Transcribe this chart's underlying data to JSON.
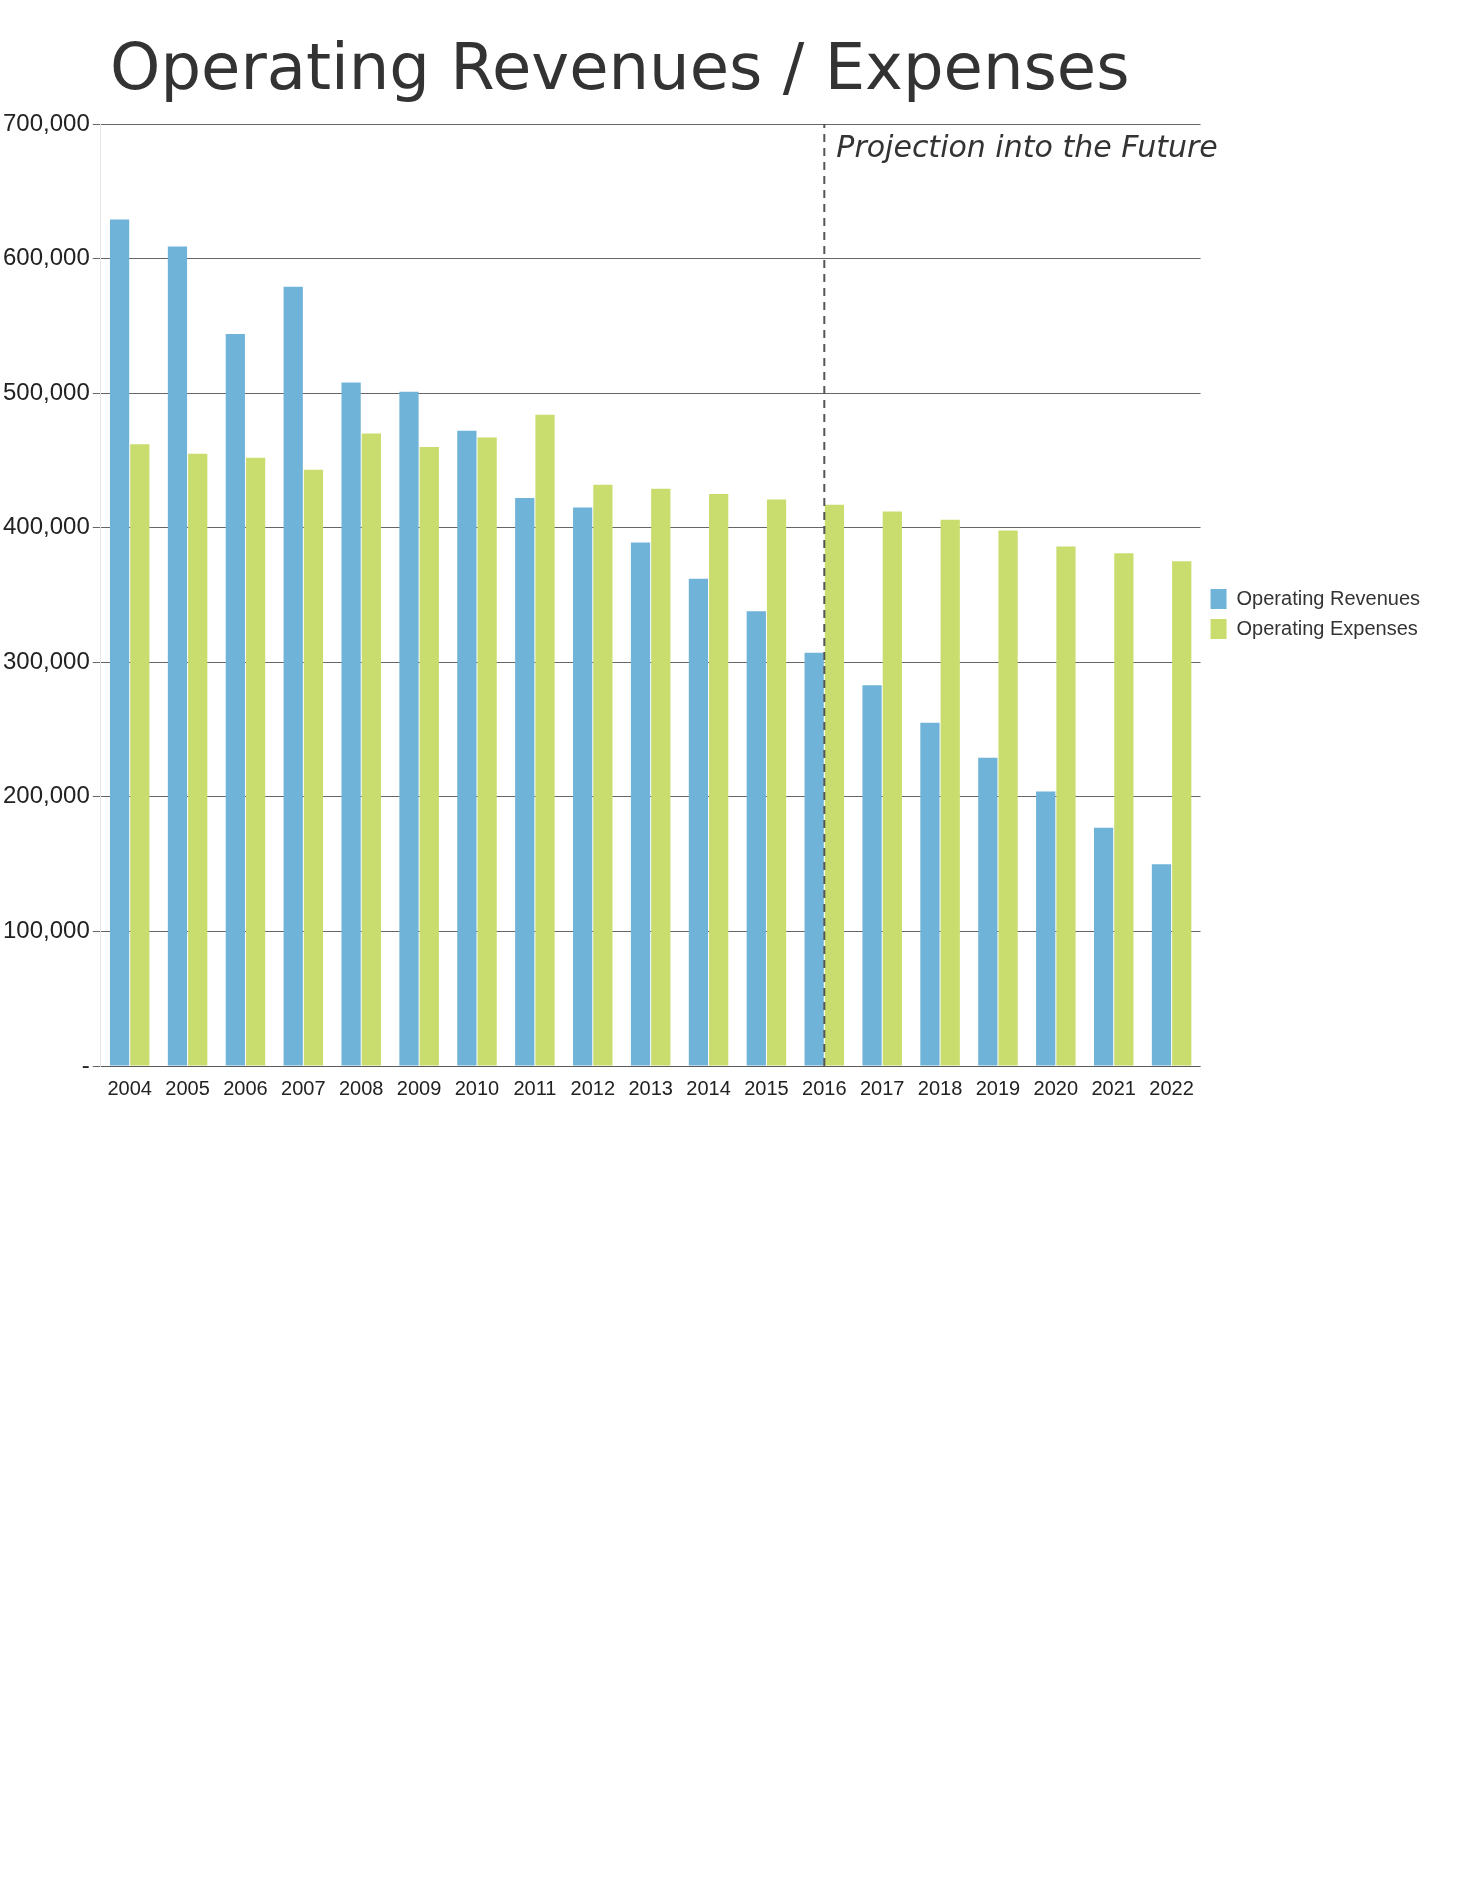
{
  "chart_data": {
    "type": "bar",
    "title": "Operating Revenues / Expenses",
    "categories": [
      "2004",
      "2005",
      "2006",
      "2007",
      "2008",
      "2009",
      "2010",
      "2011",
      "2012",
      "2013",
      "2014",
      "2015",
      "2016",
      "2017",
      "2018",
      "2019",
      "2020",
      "2021",
      "2022"
    ],
    "series": [
      {
        "name": "Operating Revenues",
        "color": "#6fb3d8",
        "values": [
          629000,
          609000,
          544000,
          579000,
          508000,
          501000,
          472000,
          422000,
          415000,
          389000,
          362000,
          338000,
          307000,
          283000,
          255000,
          229000,
          204000,
          177000,
          150000
        ]
      },
      {
        "name": "Operating Expenses",
        "color": "#c9dc6e",
        "values": [
          462000,
          455000,
          452000,
          443000,
          470000,
          460000,
          467000,
          484000,
          432000,
          429000,
          425000,
          421000,
          417000,
          412000,
          406000,
          398000,
          386000,
          381000,
          375000
        ]
      }
    ],
    "ylim": [
      0,
      700000
    ],
    "yticks": [
      {
        "value": 0,
        "label": "-"
      },
      {
        "value": 100000,
        "label": "100,000"
      },
      {
        "value": 200000,
        "label": "200,000"
      },
      {
        "value": 300000,
        "label": "300,000"
      },
      {
        "value": 400000,
        "label": "400,000"
      },
      {
        "value": 500000,
        "label": "500,000"
      },
      {
        "value": 600000,
        "label": "600,000"
      },
      {
        "value": 700000,
        "label": "700,000"
      }
    ],
    "grid": "y",
    "legend": "right",
    "ref_lines": [
      {
        "axis": "x",
        "value": "2016",
        "label": "Projection into the Future",
        "line_style": "dashed",
        "color": "#555555"
      }
    ]
  }
}
